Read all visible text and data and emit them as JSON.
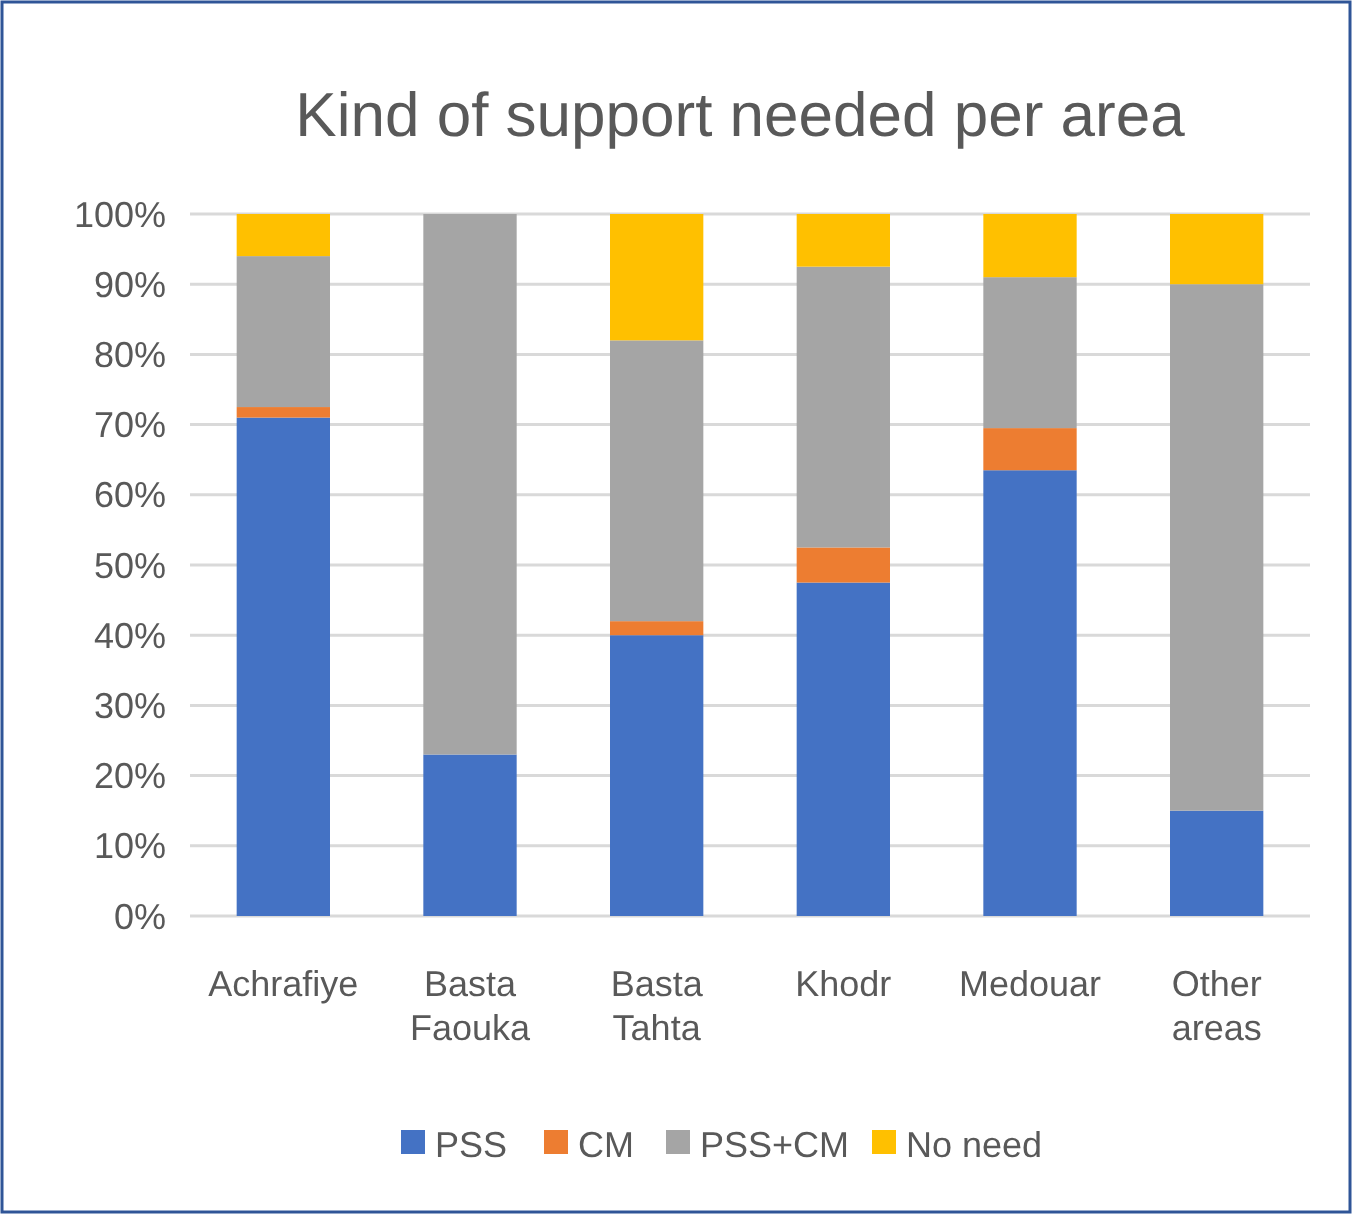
{
  "chart_data": {
    "type": "bar",
    "title": "Kind of support needed per area",
    "categories": [
      "Achrafiye",
      "Basta Faouka",
      "Basta Tahta",
      "Khodr",
      "Medouar",
      "Other areas"
    ],
    "stacked": true,
    "ylim": [
      0,
      100
    ],
    "yticks": [
      {
        "value": 0,
        "label": "0%"
      },
      {
        "value": 10,
        "label": "10%"
      },
      {
        "value": 20,
        "label": "20%"
      },
      {
        "value": 30,
        "label": "30%"
      },
      {
        "value": 40,
        "label": "40%"
      },
      {
        "value": 50,
        "label": "50%"
      },
      {
        "value": 60,
        "label": "60%"
      },
      {
        "value": 70,
        "label": "70%"
      },
      {
        "value": 80,
        "label": "80%"
      },
      {
        "value": 90,
        "label": "90%"
      },
      {
        "value": 100,
        "label": "100%"
      }
    ],
    "grid": "y",
    "legend": "bottom",
    "series": [
      {
        "name": "PSS",
        "color": "#4472c4",
        "values": [
          71,
          23,
          40,
          47.5,
          63.5,
          15
        ]
      },
      {
        "name": "CM",
        "color": "#ed7d31",
        "values": [
          1.5,
          0,
          2,
          5,
          6,
          0
        ]
      },
      {
        "name": "PSS+CM",
        "color": "#a5a5a5",
        "values": [
          21.5,
          77,
          40,
          40,
          21.5,
          75
        ]
      },
      {
        "name": "No need",
        "color": "#ffc000",
        "values": [
          6,
          0,
          18,
          7.5,
          9,
          10
        ]
      }
    ]
  }
}
